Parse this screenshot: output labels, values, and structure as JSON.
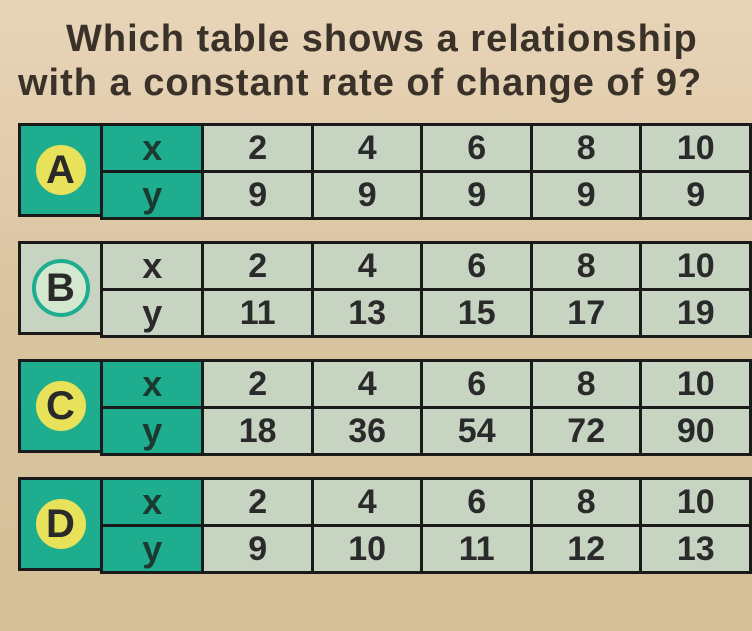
{
  "question_line1": "Which table shows a relationship",
  "question_line2": "with a constant rate of change of 9?",
  "colors": {
    "teal": "#1eae8f",
    "cell_bg": "#c8d4c2",
    "letter_a_fill": "#e8e25a",
    "letter_a_border": "#1eae8f",
    "letter_b_fill": "#d4e8d0",
    "letter_b_border": "#1eae8f",
    "letter_c_fill": "#e8e25a",
    "letter_c_border": "#1eae8f",
    "letter_d_fill": "#e8e25a",
    "letter_d_border": "#1eae8f",
    "text": "#2a2a2a"
  },
  "tables": [
    {
      "letter": "A",
      "letter_fill": "#e8e25a",
      "letter_border": "#1eae8f",
      "letter_cell_bg": "#1eae8f",
      "var_cell_bg": "#1eae8f",
      "rows": [
        {
          "label": "x",
          "values": [
            "2",
            "4",
            "6",
            "8",
            "10"
          ]
        },
        {
          "label": "y",
          "values": [
            "9",
            "9",
            "9",
            "9",
            "9"
          ]
        }
      ]
    },
    {
      "letter": "B",
      "letter_fill": "#d4e8d0",
      "letter_border": "#1eae8f",
      "letter_cell_bg": "#c8d4c2",
      "var_cell_bg": "#c8d4c2",
      "rows": [
        {
          "label": "x",
          "values": [
            "2",
            "4",
            "6",
            "8",
            "10"
          ]
        },
        {
          "label": "y",
          "values": [
            "11",
            "13",
            "15",
            "17",
            "19"
          ]
        }
      ]
    },
    {
      "letter": "C",
      "letter_fill": "#e8e25a",
      "letter_border": "#1eae8f",
      "letter_cell_bg": "#1eae8f",
      "var_cell_bg": "#1eae8f",
      "rows": [
        {
          "label": "x",
          "values": [
            "2",
            "4",
            "6",
            "8",
            "10"
          ]
        },
        {
          "label": "y",
          "values": [
            "18",
            "36",
            "54",
            "72",
            "90"
          ]
        }
      ]
    },
    {
      "letter": "D",
      "letter_fill": "#e8e25a",
      "letter_border": "#1eae8f",
      "letter_cell_bg": "#1eae8f",
      "var_cell_bg": "#1eae8f",
      "rows": [
        {
          "label": "x",
          "values": [
            "2",
            "4",
            "6",
            "8",
            "10"
          ]
        },
        {
          "label": "y",
          "values": [
            "9",
            "10",
            "11",
            "12",
            "13"
          ]
        }
      ]
    }
  ]
}
